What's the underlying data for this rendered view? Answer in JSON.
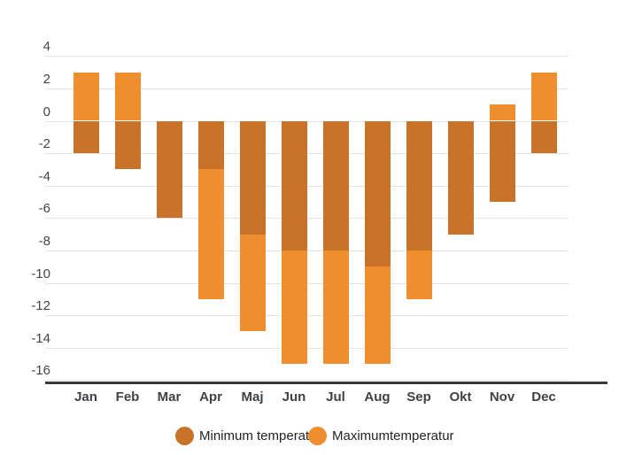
{
  "chart_data": {
    "type": "bar",
    "stacked": true,
    "title": "",
    "xlabel": "",
    "ylabel": "",
    "categories": [
      "Jan",
      "Feb",
      "Mar",
      "Apr",
      "Maj",
      "Jun",
      "Jul",
      "Aug",
      "Sep",
      "Okt",
      "Nov",
      "Dec"
    ],
    "series": [
      {
        "name": "Minimum temperatur",
        "color": "#c9732a",
        "values": [
          -2,
          -3,
          -6,
          -3,
          -7,
          -8,
          -8,
          -9,
          -8,
          -7,
          -5,
          -2
        ]
      },
      {
        "name": "Maximumtemperatur",
        "color": "#ee8e2e",
        "values": [
          3,
          3,
          0,
          -8,
          -6,
          -7,
          -7,
          -6,
          -3,
          0,
          1,
          3
        ]
      }
    ],
    "drawn_segments_note": "negative max values stack below min value; positive max values rise from zero",
    "y_axis": {
      "min": -16,
      "max": 4,
      "ticks": [
        4,
        2,
        0,
        -2,
        -4,
        -6,
        -8,
        -10,
        -12,
        -14,
        -16
      ]
    },
    "grid": true,
    "legend_position": "bottom"
  },
  "colors": {
    "background": "#ffffff",
    "gridline": "#e3e3e3",
    "baseline": "#3a3a3a",
    "axis_text": "#3e4145",
    "legend_text": "#232323",
    "series_min": "#c9732a",
    "series_max": "#ee8e2e"
  }
}
